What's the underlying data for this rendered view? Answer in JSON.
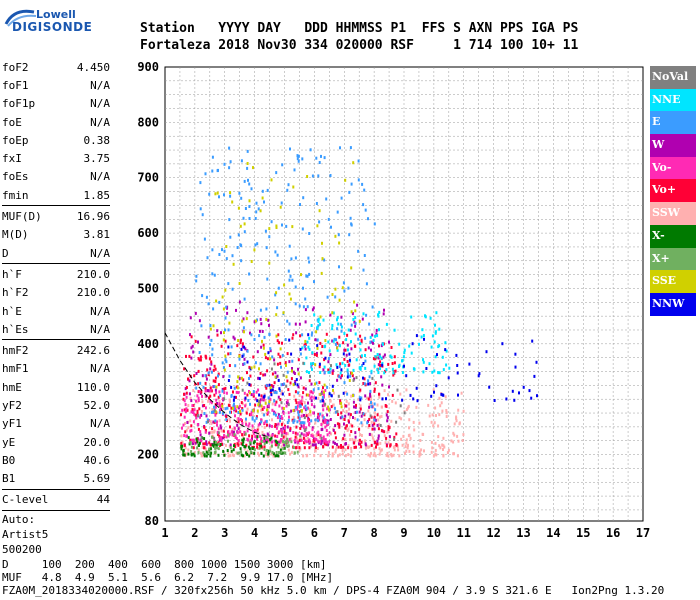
{
  "logo": {
    "line1": "Lowell",
    "line2": "DIGISONDE"
  },
  "header": {
    "row1": "Station   YYYY DAY   DDD HHMMSS P1  FFS S AXN PPS IGA PS",
    "row2": "Fortaleza 2018 Nov30 334 020000 RSF     1 714 100 10+ 11"
  },
  "params": {
    "group1": [
      {
        "label": "foF2",
        "value": "4.450"
      },
      {
        "label": "foF1",
        "value": "N/A"
      },
      {
        "label": "foF1p",
        "value": "N/A"
      },
      {
        "label": "foE",
        "value": "N/A"
      },
      {
        "label": "foEp",
        "value": "0.38"
      },
      {
        "label": "fxI",
        "value": "3.75"
      },
      {
        "label": "foEs",
        "value": "N/A"
      },
      {
        "label": "fmin",
        "value": "1.85"
      }
    ],
    "group2": [
      {
        "label": "MUF(D)",
        "value": "16.96"
      },
      {
        "label": "M(D)",
        "value": "3.81"
      },
      {
        "label": "D",
        "value": "N/A"
      }
    ],
    "group3": [
      {
        "label": "h`F",
        "value": "210.0"
      },
      {
        "label": "h`F2",
        "value": "210.0"
      },
      {
        "label": "h`E",
        "value": "N/A"
      },
      {
        "label": "h`Es",
        "value": "N/A"
      }
    ],
    "group4": [
      {
        "label": "hmF2",
        "value": "242.6"
      },
      {
        "label": "hmF1",
        "value": "N/A"
      },
      {
        "label": "hmE",
        "value": "110.0"
      },
      {
        "label": "yF2",
        "value": "52.0"
      },
      {
        "label": "yF1",
        "value": "N/A"
      },
      {
        "label": "yE",
        "value": "20.0"
      },
      {
        "label": "B0",
        "value": "40.6"
      },
      {
        "label": "B1",
        "value": "5.69"
      }
    ],
    "clevel": {
      "label": "C-level",
      "value": "44"
    },
    "auto": [
      "Auto:",
      "Artist5",
      "500200"
    ]
  },
  "bottom": {
    "line1": "D     100  200  400  600  800 1000 1500 3000 [km]",
    "line2": "MUF   4.8  4.9  5.1  5.6  6.2  7.2  9.9 17.0 [MHz]",
    "line3": "FZA0M_2018334020000.RSF / 320fx256h 50 kHz 5.0 km / DPS-4 FZA0M 904 / 3.9 S 321.6 E   Ion2Png 1.3.20"
  },
  "legend": [
    {
      "label": "NoVal",
      "color": "#808080"
    },
    {
      "label": "NNE",
      "color": "#00e5ff"
    },
    {
      "label": "E",
      "color": "#3b9cff"
    },
    {
      "label": "W",
      "color": "#b000b0"
    },
    {
      "label": "Vo-",
      "color": "#ff2ab4"
    },
    {
      "label": "Vo+",
      "color": "#ff0036"
    },
    {
      "label": "SSW",
      "color": "#ffb0b0"
    },
    {
      "label": "X-",
      "color": "#007a00"
    },
    {
      "label": "X+",
      "color": "#70b060"
    },
    {
      "label": "SSE",
      "color": "#d0d000"
    },
    {
      "label": "NNW",
      "color": "#0000ee"
    }
  ],
  "chart_data": {
    "type": "scatter",
    "xlabel": "",
    "ylabel": "",
    "xlim": [
      1,
      17
    ],
    "ylim": [
      80,
      900
    ],
    "x_ticks": [
      "1",
      "2",
      "3",
      "4",
      "5",
      "6",
      "7",
      "8",
      "9",
      "10",
      "11",
      "12",
      "13",
      "14",
      "15",
      "16",
      "17"
    ],
    "y_ticks": [
      "80",
      "200",
      "300",
      "400",
      "500",
      "600",
      "700",
      "800",
      "900"
    ],
    "grid": true,
    "clusters": [
      {
        "name": "SSW",
        "x": [
          1.5,
          11.0
        ],
        "y": [
          200,
          320
        ],
        "n": 450
      },
      {
        "name": "W",
        "x": [
          1.6,
          8.5
        ],
        "y": [
          220,
          480
        ],
        "n": 300
      },
      {
        "name": "Vo+",
        "x": [
          1.5,
          8.8
        ],
        "y": [
          215,
          420
        ],
        "n": 380
      },
      {
        "name": "Vo-",
        "x": [
          1.5,
          6.5
        ],
        "y": [
          225,
          320
        ],
        "n": 250
      },
      {
        "name": "E",
        "x": [
          2.0,
          8.0
        ],
        "y": [
          260,
          760
        ],
        "n": 350
      },
      {
        "name": "NNE",
        "x": [
          5.5,
          10.5
        ],
        "y": [
          350,
          460
        ],
        "n": 140
      },
      {
        "name": "NNW",
        "x": [
          3.0,
          13.5
        ],
        "y": [
          300,
          420
        ],
        "n": 100
      },
      {
        "name": "X-",
        "x": [
          1.5,
          5.0
        ],
        "y": [
          200,
          235
        ],
        "n": 90
      },
      {
        "name": "X+",
        "x": [
          1.8,
          5.5
        ],
        "y": [
          205,
          240
        ],
        "n": 60
      },
      {
        "name": "SSE",
        "x": [
          2.5,
          7.5
        ],
        "y": [
          280,
          740
        ],
        "n": 130
      },
      {
        "name": "NoVal",
        "x": [
          2.0,
          9.0
        ],
        "y": [
          230,
          380
        ],
        "n": 40
      }
    ],
    "profile_curve": {
      "x": [
        1.0,
        1.5,
        2.0,
        2.5,
        3.0,
        3.5,
        4.0,
        4.45
      ],
      "y": [
        420,
        370,
        330,
        300,
        275,
        255,
        240,
        232
      ]
    }
  }
}
